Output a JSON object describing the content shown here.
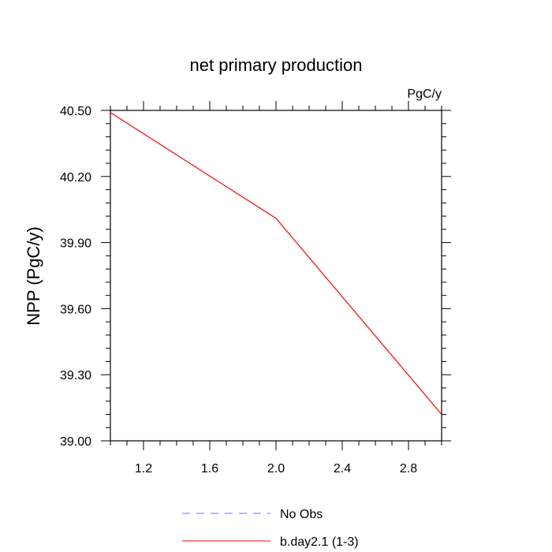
{
  "chart_data": {
    "type": "line",
    "title": "net primary production",
    "units_label": "PgC/y",
    "ylabel": "NPP  (PgC/y)",
    "xlabel": "",
    "xlim": [
      1.0,
      3.0
    ],
    "ylim": [
      39.0,
      40.5
    ],
    "xticks": [
      1.2,
      1.6,
      2.0,
      2.4,
      2.8
    ],
    "xtick_labels": [
      "1.2",
      "1.6",
      "2.0",
      "2.4",
      "2.8"
    ],
    "yticks": [
      39.0,
      39.3,
      39.6,
      39.9,
      40.2,
      40.5
    ],
    "ytick_labels": [
      "39.00",
      "39.30",
      "39.60",
      "39.90",
      "40.20",
      "40.50"
    ],
    "series": [
      {
        "name": "b.day2.1 (1-3)",
        "color": "#ff0000",
        "x": [
          1.0,
          2.0,
          3.0
        ],
        "y": [
          40.49,
          40.01,
          39.12
        ]
      }
    ],
    "legend": [
      {
        "label": "No Obs",
        "color": "#6f6fff",
        "style": "dashed"
      },
      {
        "label": "b.day2.1 (1-3)",
        "color": "#ff0000",
        "style": "solid"
      }
    ],
    "legend_position": "bottom-center",
    "grid": false
  }
}
